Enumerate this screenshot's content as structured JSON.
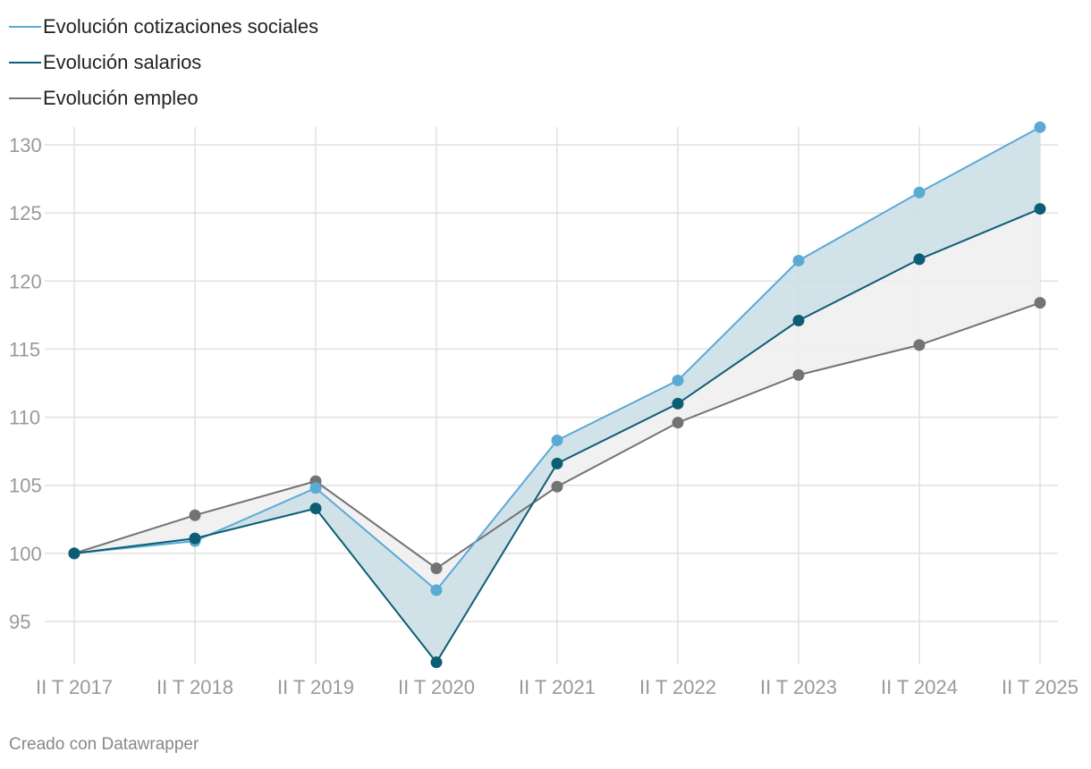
{
  "chart_data": {
    "type": "line",
    "title": "",
    "xlabel": "",
    "ylabel": "",
    "categories": [
      "II T 2017",
      "II T 2018",
      "II T 2019",
      "II T 2020",
      "II T 2021",
      "II T 2022",
      "II T 2023",
      "II T 2024",
      "II T 2025"
    ],
    "series": [
      {
        "name": "Evolución cotizaciones sociales",
        "color": "#5aaad6",
        "values": [
          100,
          100.9,
          104.8,
          97.3,
          108.3,
          112.7,
          121.5,
          126.5,
          131.3
        ]
      },
      {
        "name": "Evolución salarios",
        "color": "#0c5e75",
        "values": [
          100,
          101.1,
          103.3,
          92.0,
          106.6,
          111.0,
          117.1,
          121.6,
          125.3
        ]
      },
      {
        "name": "Evolución empleo",
        "color": "#737373",
        "values": [
          100,
          102.8,
          105.3,
          98.9,
          104.9,
          109.6,
          113.1,
          115.3,
          118.4
        ]
      }
    ],
    "yticks": [
      95,
      100,
      105,
      110,
      115,
      120,
      125,
      130
    ],
    "ylim": [
      92,
      131.3
    ],
    "grid": true,
    "legend": "top-left",
    "fills": [
      {
        "between": [
          0,
          1
        ],
        "color": "#cddfe7"
      },
      {
        "between": [
          1,
          2
        ],
        "color": "#efefef"
      }
    ]
  },
  "footer": "Creado con Datawrapper"
}
